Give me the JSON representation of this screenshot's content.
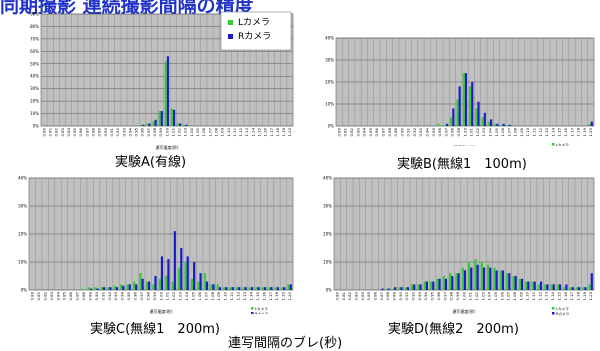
{
  "page_title": "同期撮影 連続撮影間隔の精度",
  "overall_xlabel": "連写間隔のブレ(秒)",
  "colors": {
    "l_camera": "#33cc33",
    "r_camera": "#1a1acc",
    "plot_bg": "#c0c0c0",
    "title": "#1e32c8"
  },
  "chart_data": [
    {
      "type": "bar",
      "caption": "実験A(有線)",
      "xlabel": "連写速度(秒)",
      "ylim": [
        0,
        90
      ],
      "y_ticks": [
        "0%",
        "10%",
        "20%",
        "30%",
        "40%",
        "50%",
        "60%",
        "70%",
        "80%",
        "90%"
      ],
      "categories": [
        "0.80",
        "0.81",
        "0.82",
        "0.83",
        "0.84",
        "0.85",
        "0.86",
        "0.87",
        "0.88",
        "0.89",
        "0.90",
        "0.91",
        "0.92",
        "0.93",
        "0.94",
        "0.95",
        "0.96",
        "0.97",
        "0.98",
        "0.99",
        "1.00",
        "1.01",
        "1.02",
        "1.03",
        "1.04",
        "1.05",
        "1.06",
        "1.07",
        "1.08",
        "1.09",
        "1.10",
        "1.11",
        "1.12",
        "1.13",
        "1.14",
        "1.15",
        "1.16",
        "1.17",
        "1.18",
        "1.19",
        "1.20"
      ],
      "legend": {
        "position": "top-right",
        "items": [
          "Lカメラ",
          "Rカメラ"
        ]
      },
      "series": [
        {
          "name": "Lカメラ",
          "values": [
            0,
            0,
            0,
            0,
            0,
            0,
            0,
            0,
            0,
            0,
            0,
            0,
            0,
            0,
            0,
            0,
            1,
            2,
            4,
            12,
            52,
            14,
            2,
            1,
            0,
            0,
            0,
            0,
            0,
            0,
            0,
            0,
            0,
            0,
            0,
            0,
            0,
            0,
            0,
            0,
            0
          ]
        },
        {
          "name": "Rカメラ",
          "values": [
            0,
            0,
            0,
            0,
            0,
            0,
            0,
            0,
            0,
            0,
            0,
            0,
            0,
            0,
            0,
            0,
            1,
            2,
            5,
            12,
            56,
            13,
            2,
            1,
            0,
            0,
            0,
            0,
            0,
            0,
            0,
            0,
            0,
            0,
            0,
            0,
            0,
            0,
            0,
            0,
            0
          ]
        }
      ]
    },
    {
      "type": "bar",
      "caption": "実験B(無線1　100m)",
      "xlabel": "連写速度(秒)",
      "ylim": [
        0,
        40
      ],
      "y_ticks": [
        "0%",
        "10%",
        "20%",
        "30%",
        "40%"
      ],
      "categories": [
        "0.80",
        "0.81",
        "0.82",
        "0.83",
        "0.84",
        "0.85",
        "0.86",
        "0.87",
        "0.88",
        "0.89",
        "0.90",
        "0.91",
        "0.92",
        "0.93",
        "0.94",
        "0.95",
        "0.96",
        "0.97",
        "0.98",
        "0.99",
        "1.00",
        "1.01",
        "1.02",
        "1.03",
        "1.04",
        "1.05",
        "1.06",
        "1.07",
        "1.08",
        "1.09",
        "1.10",
        "1.11",
        "1.12",
        "1.13",
        "1.14",
        "1.15",
        "1.16",
        "1.17",
        "1.18",
        "1.19",
        "1.20"
      ],
      "legend": {
        "position": "bottom-right",
        "items": [
          "Lカメラ",
          "Rカメラ"
        ]
      },
      "series": [
        {
          "name": "Lカメラ",
          "values": [
            0,
            0,
            0,
            0,
            0,
            0,
            0,
            0,
            0,
            0,
            0,
            0,
            0,
            0,
            0,
            0,
            1,
            0.5,
            4,
            12,
            24,
            18,
            8,
            4,
            2,
            1,
            0.5,
            0.5,
            0,
            0,
            0,
            0,
            0,
            0,
            0,
            0,
            0,
            0,
            0,
            0,
            1
          ]
        },
        {
          "name": "Rカメラ",
          "values": [
            0,
            0,
            0,
            0,
            0,
            0,
            0,
            0,
            0,
            0,
            0,
            0,
            0,
            0,
            0,
            0,
            0,
            1,
            8,
            18,
            24,
            20,
            11,
            6,
            3,
            1,
            1,
            0.5,
            0,
            0,
            0,
            0,
            0,
            0,
            0,
            0,
            0,
            0,
            0,
            0,
            2
          ]
        }
      ]
    },
    {
      "type": "bar",
      "caption": "実験C(無線1　200m)",
      "xlabel": "連写速度(秒)",
      "ylim": [
        0,
        40
      ],
      "y_ticks": [
        "0%",
        "10%",
        "20%",
        "30%",
        "40%"
      ],
      "categories": [
        "0.80",
        "0.81",
        "0.82",
        "0.83",
        "0.84",
        "0.85",
        "0.86",
        "0.87",
        "0.88",
        "0.89",
        "0.90",
        "0.91",
        "0.92",
        "0.93",
        "0.94",
        "0.95",
        "0.96",
        "0.97",
        "0.98",
        "0.99",
        "1.00",
        "1.01",
        "1.02",
        "1.03",
        "1.04",
        "1.05",
        "1.06",
        "1.07",
        "1.08",
        "1.09",
        "1.10",
        "1.11",
        "1.12",
        "1.13",
        "1.14",
        "1.15",
        "1.16",
        "1.17",
        "1.18",
        "1.19",
        "1.20"
      ],
      "legend": {
        "position": "bottom-right",
        "items": [
          "Lカメラ",
          "Rカメラ"
        ]
      },
      "series": [
        {
          "name": "Lカメラ",
          "values": [
            0,
            0,
            0,
            0,
            0,
            0,
            0,
            0,
            0.5,
            1,
            1,
            1,
            1,
            1.5,
            2,
            2,
            3,
            6,
            3,
            2,
            4,
            5,
            3,
            8,
            10,
            4,
            3,
            6,
            2,
            2,
            1,
            1,
            1,
            1,
            1,
            1,
            1,
            1,
            1,
            1,
            2
          ]
        },
        {
          "name": "Rカメラ",
          "values": [
            0,
            0,
            0,
            0,
            0,
            0,
            0,
            0,
            0,
            0.5,
            0.5,
            1,
            1,
            1,
            1.5,
            2,
            2,
            4,
            3,
            5,
            12,
            11,
            21,
            15,
            12,
            10,
            6,
            3,
            2,
            1,
            1,
            1,
            1,
            1,
            1,
            1,
            1,
            1,
            1,
            1,
            2
          ]
        }
      ]
    },
    {
      "type": "bar",
      "caption": "実験D(無線2　200m)",
      "xlabel": "連写速度(秒)",
      "ylim": [
        0,
        40
      ],
      "y_ticks": [
        "0%",
        "10%",
        "20%",
        "30%",
        "40%"
      ],
      "categories": [
        "0.80",
        "0.81",
        "0.82",
        "0.83",
        "0.84",
        "0.85",
        "0.86",
        "0.87",
        "0.88",
        "0.89",
        "0.90",
        "0.91",
        "0.92",
        "0.93",
        "0.94",
        "0.95",
        "0.96",
        "0.97",
        "0.98",
        "0.99",
        "1.00",
        "1.01",
        "1.02",
        "1.03",
        "1.04",
        "1.05",
        "1.06",
        "1.07",
        "1.08",
        "1.09",
        "1.10",
        "1.11",
        "1.12",
        "1.13",
        "1.14",
        "1.15",
        "1.16",
        "1.17",
        "1.18",
        "1.19",
        "1.20"
      ],
      "legend": {
        "position": "bottom-right",
        "items": [
          "Lカメラ",
          "Rカメラ"
        ]
      },
      "series": [
        {
          "name": "Lカメラ",
          "values": [
            0,
            0,
            0,
            0,
            0,
            0,
            0,
            0,
            0.5,
            0.5,
            1,
            1,
            2,
            2,
            3,
            3,
            4,
            5,
            6,
            6,
            8,
            10,
            11,
            10,
            9,
            8,
            7,
            6,
            5,
            4,
            3,
            3,
            2,
            2,
            2,
            2,
            1,
            1,
            1,
            1,
            2
          ]
        },
        {
          "name": "Rカメラ",
          "values": [
            0,
            0,
            0,
            0,
            0,
            0,
            0,
            0.5,
            0.5,
            1,
            1,
            1,
            2,
            2,
            3,
            3,
            4,
            4,
            5,
            6,
            7,
            8,
            9,
            8,
            8,
            7,
            7,
            6,
            5,
            4,
            3,
            3,
            3,
            2,
            2,
            2,
            2,
            1,
            1,
            1,
            6
          ]
        }
      ]
    }
  ]
}
